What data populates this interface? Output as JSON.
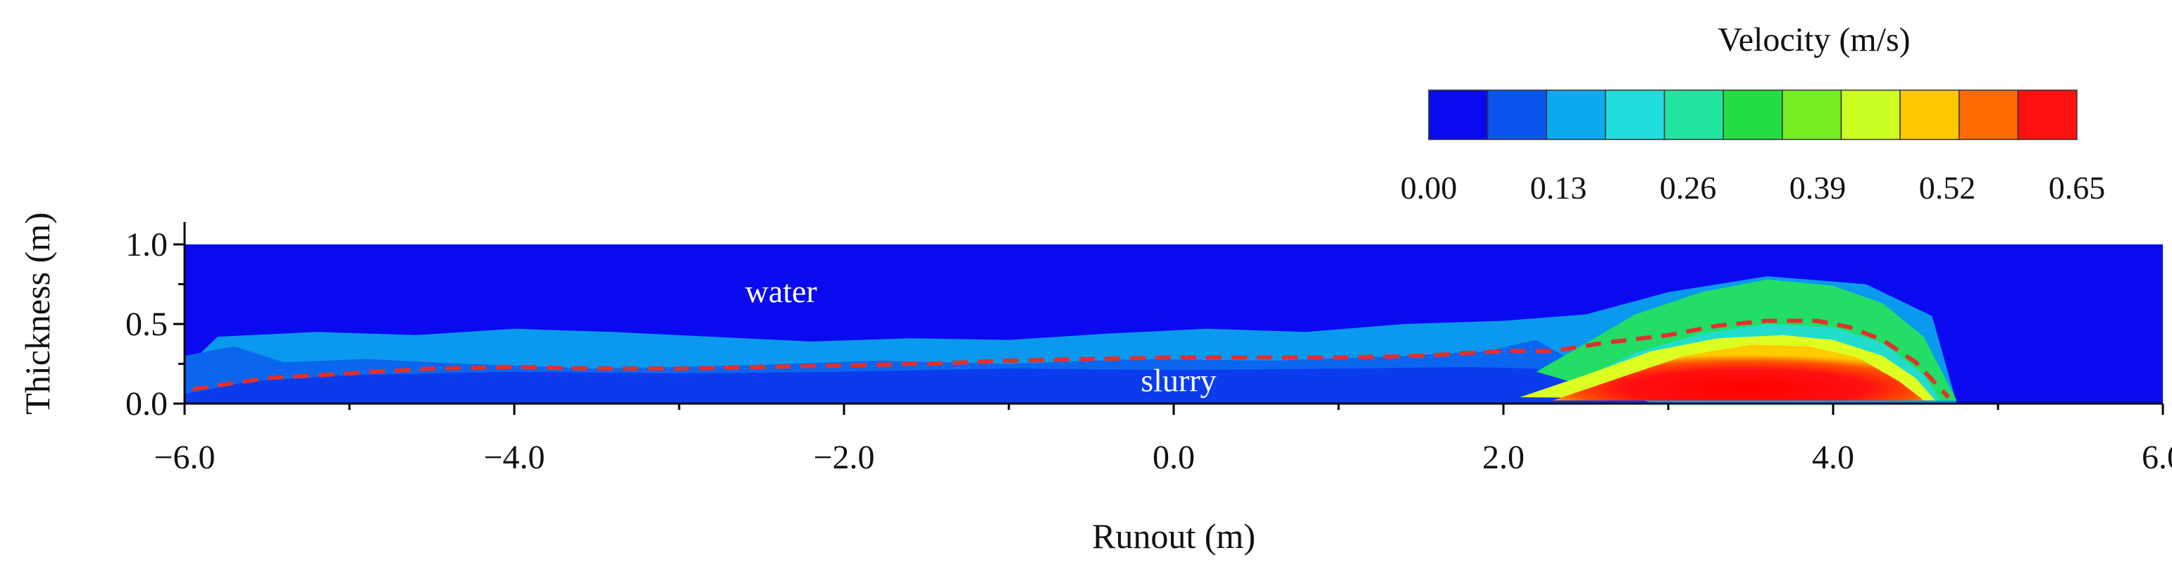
{
  "chart_data": {
    "type": "heatmap",
    "xlabel": "Runout (m)",
    "ylabel": "Thickness (m)",
    "xlim": [
      -6.0,
      6.0
    ],
    "ylim": [
      0.0,
      1.0
    ],
    "x_ticks": [
      -6.0,
      -4.0,
      -2.0,
      0.0,
      2.0,
      4.0,
      6.0
    ],
    "x_tick_labels": [
      "−6.0",
      "−4.0",
      "−2.0",
      "0.0",
      "2.0",
      "4.0",
      "6.0"
    ],
    "y_ticks": [
      0.0,
      0.5,
      1.0
    ],
    "y_tick_labels": [
      "0.0",
      "0.5",
      "1.0"
    ],
    "colorbar": {
      "title": "Velocity (m/s)",
      "min": 0.0,
      "max": 0.65,
      "tick_values": [
        0.0,
        0.13,
        0.26,
        0.39,
        0.52,
        0.65
      ],
      "tick_labels": [
        "0.00",
        "0.13",
        "0.26",
        "0.39",
        "0.52",
        "0.65"
      ],
      "colors": [
        "#0a0af0",
        "#0a55ee",
        "#0aaaee",
        "#22dddd",
        "#22e6a0",
        "#22dd44",
        "#77ee22",
        "#ccff22",
        "#ffc800",
        "#ff6a00",
        "#ff1010"
      ]
    },
    "annotations": [
      {
        "text": "water",
        "x": -2.6,
        "y": 0.7
      },
      {
        "text": "slurry",
        "x": -0.2,
        "y": 0.14
      }
    ],
    "flow_front_profile": {
      "style": "dashed",
      "color": "#e03030",
      "x": [
        -5.95,
        -5.5,
        -5.0,
        -4.5,
        -4.0,
        -3.5,
        -3.0,
        -2.5,
        -2.0,
        -1.5,
        -1.0,
        -0.5,
        0.0,
        0.5,
        1.0,
        1.5,
        2.0,
        2.3,
        2.6,
        3.0,
        3.3,
        3.6,
        3.9,
        4.1,
        4.3,
        4.5,
        4.6,
        4.7
      ],
      "y": [
        0.09,
        0.16,
        0.19,
        0.22,
        0.23,
        0.22,
        0.22,
        0.23,
        0.24,
        0.25,
        0.27,
        0.28,
        0.29,
        0.29,
        0.29,
        0.3,
        0.33,
        0.33,
        0.38,
        0.43,
        0.49,
        0.52,
        0.52,
        0.48,
        0.4,
        0.26,
        0.15,
        0.04
      ]
    },
    "regions": [
      {
        "name": "water-layer",
        "level": 0.0
      },
      {
        "name": "upper-mixing-layer",
        "level": 0.13
      },
      {
        "name": "slurry-body",
        "level": 0.06
      },
      {
        "name": "head-outer",
        "level": 0.39
      },
      {
        "name": "head-inner",
        "level": 0.55
      },
      {
        "name": "head-core",
        "level": 0.65
      }
    ]
  }
}
